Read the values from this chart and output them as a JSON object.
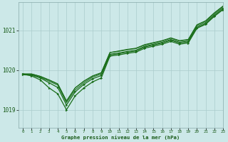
{
  "bg_color": "#cce8e8",
  "grid_color": "#aacccc",
  "line_color": "#1a6e1a",
  "marker_color": "#1a6e1a",
  "xlabel": "Graphe pression niveau de la mer (hPa)",
  "xlabel_color": "#1a5c1a",
  "xlim": [
    -0.5,
    23
  ],
  "ylim": [
    1018.55,
    1021.7
  ],
  "yticks": [
    1019,
    1020,
    1021
  ],
  "xticks": [
    0,
    1,
    2,
    3,
    4,
    5,
    6,
    7,
    8,
    9,
    10,
    11,
    12,
    13,
    14,
    15,
    16,
    17,
    18,
    19,
    20,
    21,
    22,
    23
  ],
  "series": [
    {
      "x": [
        0,
        1,
        2,
        3,
        4,
        5,
        6,
        7,
        8,
        9,
        10,
        11,
        12,
        13,
        14,
        15,
        16,
        17,
        18,
        19,
        20,
        21,
        22,
        23
      ],
      "y": [
        1019.9,
        1019.85,
        1019.75,
        1019.55,
        1019.4,
        1019.0,
        1019.35,
        1019.55,
        1019.7,
        1019.8,
        1020.35,
        1020.38,
        1020.42,
        1020.45,
        1020.55,
        1020.6,
        1020.65,
        1020.72,
        1020.65,
        1020.68,
        1021.05,
        1021.15,
        1021.35,
        1021.52
      ],
      "marker": true,
      "lw": 0.9
    },
    {
      "x": [
        0,
        1,
        2,
        3,
        4,
        5,
        6,
        7,
        8,
        9,
        10,
        11,
        12,
        13,
        14,
        15,
        16,
        17,
        18,
        19,
        20,
        21,
        22,
        23
      ],
      "y": [
        1019.9,
        1019.88,
        1019.82,
        1019.72,
        1019.62,
        1019.18,
        1019.5,
        1019.68,
        1019.82,
        1019.9,
        1020.4,
        1020.43,
        1020.47,
        1020.5,
        1020.6,
        1020.65,
        1020.7,
        1020.77,
        1020.7,
        1020.73,
        1021.1,
        1021.2,
        1021.4,
        1021.57
      ],
      "marker": false,
      "lw": 0.8
    },
    {
      "x": [
        0,
        1,
        2,
        3,
        4,
        5,
        6,
        7,
        8,
        9,
        10,
        11,
        12,
        13,
        14,
        15,
        16,
        17,
        18,
        19,
        20,
        21,
        22,
        23
      ],
      "y": [
        1019.9,
        1019.9,
        1019.84,
        1019.75,
        1019.65,
        1019.22,
        1019.55,
        1019.72,
        1019.85,
        1019.93,
        1020.44,
        1020.47,
        1020.51,
        1020.54,
        1020.63,
        1020.68,
        1020.73,
        1020.8,
        1020.73,
        1020.76,
        1021.13,
        1021.23,
        1021.43,
        1021.6
      ],
      "marker": false,
      "lw": 0.8
    },
    {
      "x": [
        0,
        1,
        2,
        3,
        4,
        5,
        6,
        7,
        8,
        9,
        10,
        11,
        12,
        13,
        14,
        15,
        16,
        17,
        18,
        19,
        20,
        21,
        22,
        23
      ],
      "y": [
        1019.9,
        1019.9,
        1019.84,
        1019.75,
        1019.65,
        1019.22,
        1019.55,
        1019.72,
        1019.85,
        1019.93,
        1020.44,
        1020.48,
        1020.52,
        1020.55,
        1020.64,
        1020.69,
        1020.74,
        1020.81,
        1020.74,
        1020.77,
        1021.14,
        1021.24,
        1021.44,
        1021.61
      ],
      "marker": false,
      "lw": 0.8
    },
    {
      "x": [
        0,
        1,
        2,
        3,
        4,
        5,
        6,
        7,
        8,
        9,
        10,
        11,
        12,
        13,
        14,
        15,
        16,
        17,
        18,
        19,
        20,
        21,
        22,
        23
      ],
      "y": [
        1019.88,
        1019.87,
        1019.8,
        1019.68,
        1019.56,
        1019.12,
        1019.45,
        1019.64,
        1019.78,
        1019.86,
        1020.38,
        1020.41,
        1020.45,
        1020.48,
        1020.58,
        1020.63,
        1020.68,
        1020.75,
        1020.68,
        1020.71,
        1021.07,
        1021.17,
        1021.37,
        1021.54
      ],
      "marker": true,
      "lw": 0.9
    }
  ]
}
